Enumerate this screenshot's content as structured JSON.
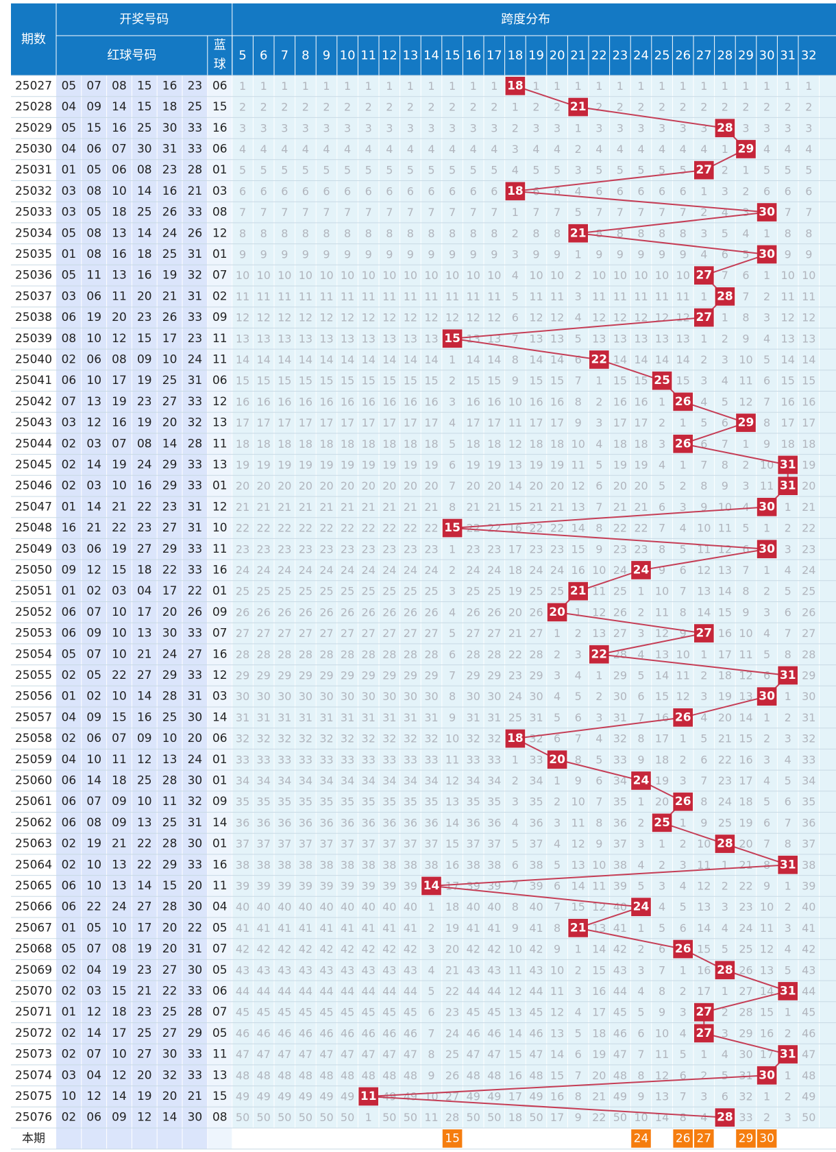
{
  "header": {
    "period_label": "期数",
    "draw_label": "开奖号码",
    "red_label": "红球号码",
    "blue_label": "蓝球",
    "span_label": "跨度分布",
    "current_label": "本期"
  },
  "span_columns": [
    5,
    6,
    7,
    8,
    9,
    10,
    11,
    12,
    13,
    14,
    15,
    16,
    17,
    18,
    19,
    20,
    21,
    22,
    23,
    24,
    25,
    26,
    27,
    28,
    29,
    30,
    31,
    32
  ],
  "colors": {
    "header_bg": "#1479c4",
    "header_text": "#ffffff",
    "period_bg": "#ffffff",
    "red_bg": "#dbe5fb",
    "blue_bg": "#eef5fd",
    "cell_bg": "#e4f3f9",
    "omit_text": "#b1b5bd",
    "hit_bg": "#c6263a",
    "line": "#c53d55",
    "current_bg": "#f57d0f",
    "grid_line": "#ffffff",
    "row_line": "#c8d9e4"
  },
  "chart_data": {
    "type": "table",
    "title": "跨度分布",
    "rows": [
      {
        "period": "25027",
        "red": [
          "05",
          "07",
          "08",
          "15",
          "16",
          "23"
        ],
        "blue": "06",
        "span": 18
      },
      {
        "period": "25028",
        "red": [
          "04",
          "09",
          "14",
          "15",
          "18",
          "25"
        ],
        "blue": "15",
        "span": 21
      },
      {
        "period": "25029",
        "red": [
          "05",
          "15",
          "16",
          "25",
          "30",
          "33"
        ],
        "blue": "16",
        "span": 28
      },
      {
        "period": "25030",
        "red": [
          "04",
          "06",
          "07",
          "30",
          "31",
          "33"
        ],
        "blue": "06",
        "span": 29
      },
      {
        "period": "25031",
        "red": [
          "01",
          "05",
          "06",
          "08",
          "23",
          "28"
        ],
        "blue": "01",
        "span": 27
      },
      {
        "period": "25032",
        "red": [
          "03",
          "08",
          "10",
          "14",
          "16",
          "21"
        ],
        "blue": "03",
        "span": 18
      },
      {
        "period": "25033",
        "red": [
          "03",
          "05",
          "18",
          "25",
          "26",
          "33"
        ],
        "blue": "08",
        "span": 30
      },
      {
        "period": "25034",
        "red": [
          "05",
          "08",
          "13",
          "14",
          "24",
          "26"
        ],
        "blue": "12",
        "span": 21
      },
      {
        "period": "25035",
        "red": [
          "01",
          "08",
          "16",
          "18",
          "25",
          "31"
        ],
        "blue": "01",
        "span": 30
      },
      {
        "period": "25036",
        "red": [
          "05",
          "11",
          "13",
          "16",
          "19",
          "32"
        ],
        "blue": "07",
        "span": 27
      },
      {
        "period": "25037",
        "red": [
          "03",
          "06",
          "11",
          "20",
          "21",
          "31"
        ],
        "blue": "02",
        "span": 28
      },
      {
        "period": "25038",
        "red": [
          "06",
          "19",
          "20",
          "23",
          "26",
          "33"
        ],
        "blue": "09",
        "span": 27
      },
      {
        "period": "25039",
        "red": [
          "08",
          "10",
          "12",
          "15",
          "17",
          "23"
        ],
        "blue": "11",
        "span": 15
      },
      {
        "period": "25040",
        "red": [
          "02",
          "06",
          "08",
          "09",
          "10",
          "24"
        ],
        "blue": "11",
        "span": 22
      },
      {
        "period": "25041",
        "red": [
          "06",
          "10",
          "17",
          "19",
          "25",
          "31"
        ],
        "blue": "06",
        "span": 25
      },
      {
        "period": "25042",
        "red": [
          "07",
          "13",
          "19",
          "23",
          "27",
          "33"
        ],
        "blue": "12",
        "span": 26
      },
      {
        "period": "25043",
        "red": [
          "03",
          "12",
          "16",
          "19",
          "20",
          "32"
        ],
        "blue": "13",
        "span": 29
      },
      {
        "period": "25044",
        "red": [
          "02",
          "03",
          "07",
          "08",
          "14",
          "28"
        ],
        "blue": "11",
        "span": 26
      },
      {
        "period": "25045",
        "red": [
          "02",
          "14",
          "19",
          "24",
          "29",
          "33"
        ],
        "blue": "13",
        "span": 31
      },
      {
        "period": "25046",
        "red": [
          "02",
          "03",
          "10",
          "16",
          "29",
          "33"
        ],
        "blue": "01",
        "span": 31
      },
      {
        "period": "25047",
        "red": [
          "01",
          "14",
          "21",
          "22",
          "23",
          "31"
        ],
        "blue": "12",
        "span": 30
      },
      {
        "period": "25048",
        "red": [
          "16",
          "21",
          "22",
          "23",
          "27",
          "31"
        ],
        "blue": "10",
        "span": 15
      },
      {
        "period": "25049",
        "red": [
          "03",
          "06",
          "19",
          "27",
          "29",
          "33"
        ],
        "blue": "11",
        "span": 30
      },
      {
        "period": "25050",
        "red": [
          "09",
          "12",
          "15",
          "18",
          "22",
          "33"
        ],
        "blue": "16",
        "span": 24
      },
      {
        "period": "25051",
        "red": [
          "01",
          "02",
          "03",
          "04",
          "17",
          "22"
        ],
        "blue": "01",
        "span": 21
      },
      {
        "period": "25052",
        "red": [
          "06",
          "07",
          "10",
          "17",
          "20",
          "26"
        ],
        "blue": "09",
        "span": 20
      },
      {
        "period": "25053",
        "red": [
          "06",
          "09",
          "10",
          "13",
          "30",
          "33"
        ],
        "blue": "07",
        "span": 27
      },
      {
        "period": "25054",
        "red": [
          "05",
          "07",
          "10",
          "21",
          "24",
          "27"
        ],
        "blue": "16",
        "span": 22
      },
      {
        "period": "25055",
        "red": [
          "02",
          "05",
          "22",
          "27",
          "29",
          "33"
        ],
        "blue": "12",
        "span": 31
      },
      {
        "period": "25056",
        "red": [
          "01",
          "02",
          "10",
          "14",
          "28",
          "31"
        ],
        "blue": "03",
        "span": 30
      },
      {
        "period": "25057",
        "red": [
          "04",
          "09",
          "15",
          "16",
          "25",
          "30"
        ],
        "blue": "14",
        "span": 26
      },
      {
        "period": "25058",
        "red": [
          "02",
          "06",
          "07",
          "09",
          "10",
          "20"
        ],
        "blue": "06",
        "span": 18
      },
      {
        "period": "25059",
        "red": [
          "04",
          "10",
          "11",
          "12",
          "13",
          "24"
        ],
        "blue": "01",
        "span": 20
      },
      {
        "period": "25060",
        "red": [
          "06",
          "14",
          "18",
          "25",
          "28",
          "30"
        ],
        "blue": "01",
        "span": 24
      },
      {
        "period": "25061",
        "red": [
          "06",
          "07",
          "09",
          "10",
          "11",
          "32"
        ],
        "blue": "09",
        "span": 26
      },
      {
        "period": "25062",
        "red": [
          "06",
          "08",
          "09",
          "13",
          "25",
          "31"
        ],
        "blue": "14",
        "span": 25
      },
      {
        "period": "25063",
        "red": [
          "02",
          "19",
          "21",
          "22",
          "28",
          "30"
        ],
        "blue": "01",
        "span": 28
      },
      {
        "period": "25064",
        "red": [
          "02",
          "10",
          "13",
          "22",
          "29",
          "33"
        ],
        "blue": "16",
        "span": 31
      },
      {
        "period": "25065",
        "red": [
          "06",
          "10",
          "13",
          "14",
          "15",
          "20"
        ],
        "blue": "11",
        "span": 14
      },
      {
        "period": "25066",
        "red": [
          "06",
          "22",
          "24",
          "27",
          "28",
          "30"
        ],
        "blue": "04",
        "span": 24
      },
      {
        "period": "25067",
        "red": [
          "01",
          "05",
          "10",
          "17",
          "20",
          "22"
        ],
        "blue": "05",
        "span": 21
      },
      {
        "period": "25068",
        "red": [
          "05",
          "07",
          "08",
          "19",
          "20",
          "31"
        ],
        "blue": "07",
        "span": 26
      },
      {
        "period": "25069",
        "red": [
          "02",
          "04",
          "19",
          "23",
          "27",
          "30"
        ],
        "blue": "05",
        "span": 28
      },
      {
        "period": "25070",
        "red": [
          "02",
          "03",
          "15",
          "21",
          "22",
          "33"
        ],
        "blue": "06",
        "span": 31
      },
      {
        "period": "25071",
        "red": [
          "01",
          "12",
          "18",
          "23",
          "25",
          "28"
        ],
        "blue": "07",
        "span": 27
      },
      {
        "period": "25072",
        "red": [
          "02",
          "14",
          "17",
          "25",
          "27",
          "29"
        ],
        "blue": "05",
        "span": 27
      },
      {
        "period": "25073",
        "red": [
          "02",
          "07",
          "10",
          "27",
          "30",
          "33"
        ],
        "blue": "11",
        "span": 31
      },
      {
        "period": "25074",
        "red": [
          "03",
          "04",
          "12",
          "20",
          "32",
          "33"
        ],
        "blue": "13",
        "span": 30
      },
      {
        "period": "25075",
        "red": [
          "10",
          "12",
          "14",
          "19",
          "20",
          "21"
        ],
        "blue": "15",
        "span": 11
      },
      {
        "period": "25076",
        "red": [
          "02",
          "06",
          "09",
          "12",
          "14",
          "30"
        ],
        "blue": "08",
        "span": 28
      }
    ],
    "current_picks": [
      15,
      24,
      26,
      27,
      29,
      30
    ]
  }
}
